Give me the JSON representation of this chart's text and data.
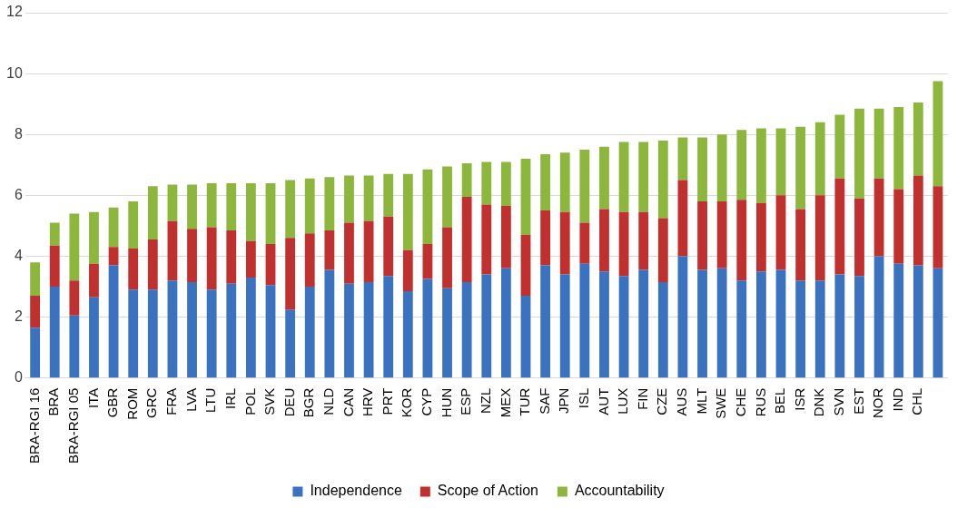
{
  "chart_data": {
    "type": "bar",
    "stacked": true,
    "categories": [
      "BRA-RGI 16",
      "BRA",
      "BRA-RGI 05",
      "ITA",
      "GBR",
      "ROM",
      "GRC",
      "FRA",
      "LVA",
      "LTU",
      "IRL",
      "POL",
      "SVK",
      "DEU",
      "BGR",
      "NLD",
      "CAN",
      "HRV",
      "PRT",
      "KOR",
      "CYP",
      "HUN",
      "ESP",
      "NZL",
      "MEX",
      "TUR",
      "SAF",
      "JPN",
      "ISL",
      "AUT",
      "LUX",
      "FIN",
      "CZE",
      "AUS",
      "MLT",
      "SWE",
      "CHE",
      "RUS",
      "BEL",
      "ISR",
      "DNK",
      "SVN",
      "EST",
      "NOR",
      "IND",
      "CHL",
      null
    ],
    "series": [
      {
        "name": "Independence",
        "color": "#3a72c0",
        "values": [
          1.65,
          3.0,
          2.05,
          2.65,
          3.7,
          2.9,
          2.9,
          3.2,
          3.15,
          2.9,
          3.1,
          3.3,
          3.05,
          2.25,
          3.0,
          3.55,
          3.1,
          3.15,
          3.35,
          2.85,
          3.25,
          2.95,
          3.15,
          3.4,
          3.6,
          2.7,
          3.7,
          3.4,
          3.75,
          3.5,
          3.35,
          3.55,
          3.15,
          4.0,
          3.55,
          3.6,
          3.2,
          3.5,
          3.55,
          3.2,
          3.2,
          3.4,
          3.35,
          4.0,
          3.75,
          3.7,
          3.6
        ]
      },
      {
        "name": "Scope of Action",
        "color": "#c0302e",
        "values": [
          1.05,
          1.35,
          1.15,
          1.1,
          0.6,
          1.35,
          1.65,
          1.95,
          1.75,
          2.05,
          1.75,
          1.2,
          1.35,
          2.35,
          1.75,
          1.3,
          2.0,
          2.0,
          1.95,
          1.35,
          1.15,
          2.0,
          2.8,
          2.3,
          2.05,
          2.0,
          1.8,
          2.05,
          1.35,
          2.05,
          2.1,
          1.9,
          2.1,
          2.5,
          2.25,
          2.2,
          2.65,
          2.25,
          2.45,
          2.35,
          2.8,
          3.15,
          2.55,
          2.55,
          2.45,
          2.95,
          2.7
        ]
      },
      {
        "name": "Accountability",
        "color": "#8cb63c",
        "values": [
          1.1,
          0.75,
          2.2,
          1.7,
          1.3,
          1.55,
          1.75,
          1.2,
          1.45,
          1.45,
          1.55,
          1.9,
          2.0,
          1.9,
          1.8,
          1.75,
          1.55,
          1.5,
          1.4,
          2.5,
          2.45,
          2.0,
          1.1,
          1.4,
          1.45,
          2.5,
          1.85,
          1.95,
          2.4,
          2.05,
          2.3,
          2.3,
          2.55,
          1.4,
          2.1,
          2.2,
          2.3,
          2.45,
          2.2,
          2.7,
          2.4,
          2.1,
          2.95,
          2.3,
          2.7,
          2.4,
          3.45
        ]
      }
    ],
    "ylim": [
      0,
      12
    ],
    "yticks": [
      0,
      2,
      4,
      6,
      8,
      10,
      12
    ],
    "grid": "y",
    "legend": "bottom"
  }
}
